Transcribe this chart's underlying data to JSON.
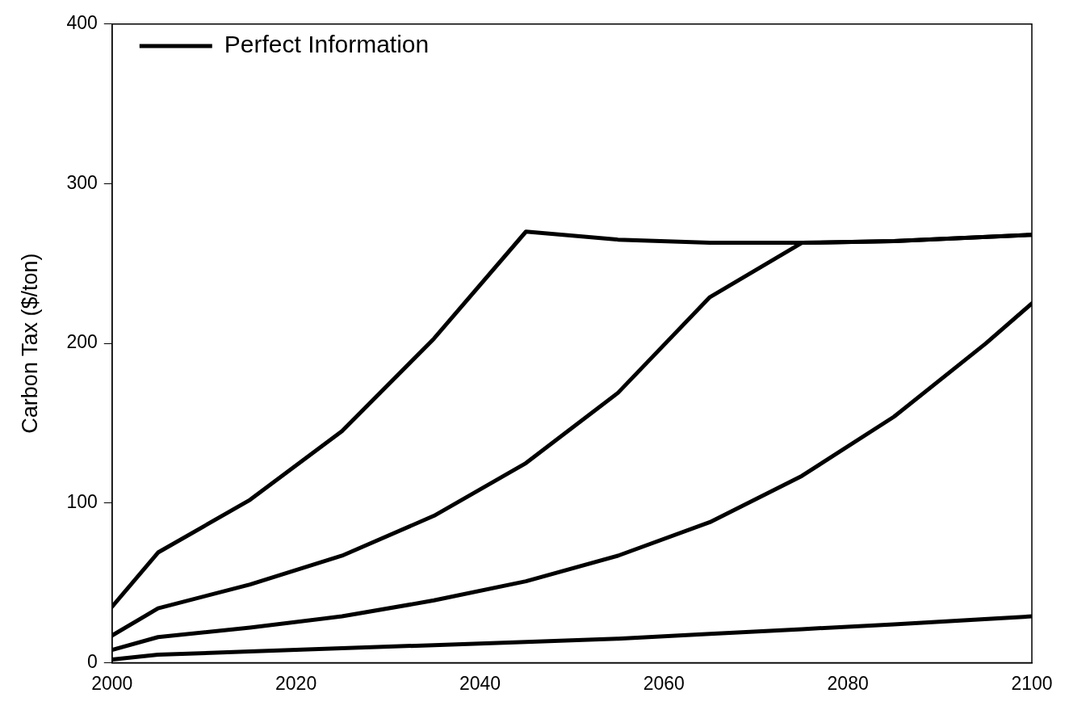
{
  "chart_data": {
    "type": "line",
    "ylabel": "Carbon Tax ($/ton)",
    "xlim": [
      2000,
      2100
    ],
    "xticks": [
      2000,
      2020,
      2040,
      2060,
      2080,
      2100
    ],
    "ylim": [
      0,
      400
    ],
    "yticks": [
      0,
      100,
      200,
      300,
      400
    ],
    "grid": false,
    "legend": "top left",
    "marker": "none",
    "line_style": "solid",
    "series": [
      {
        "name": "Perfect Information",
        "color": "#000000",
        "x": [
          2000,
          2005,
          2015,
          2025,
          2035,
          2045,
          2055,
          2065,
          2075,
          2085,
          2100
        ],
        "values": [
          35,
          69,
          102,
          145,
          203,
          270,
          265,
          263,
          263,
          264,
          268
        ]
      },
      {
        "color": "#000000",
        "x": [
          2000,
          2005,
          2015,
          2025,
          2035,
          2045,
          2055,
          2065,
          2075,
          2085,
          2100
        ],
        "values": [
          17,
          34,
          49,
          67,
          92,
          125,
          169,
          229,
          263,
          264,
          268
        ]
      },
      {
        "color": "#000000",
        "x": [
          2000,
          2005,
          2015,
          2025,
          2035,
          2045,
          2055,
          2065,
          2075,
          2085,
          2095,
          2100
        ],
        "values": [
          8,
          16,
          22,
          29,
          39,
          51,
          67,
          88,
          117,
          154,
          200,
          225
        ]
      },
      {
        "color": "#000000",
        "x": [
          2000,
          2005,
          2015,
          2025,
          2035,
          2045,
          2055,
          2065,
          2075,
          2085,
          2100
        ],
        "values": [
          2,
          5,
          7,
          9,
          11,
          13,
          15,
          18,
          21,
          24,
          29
        ]
      }
    ]
  }
}
